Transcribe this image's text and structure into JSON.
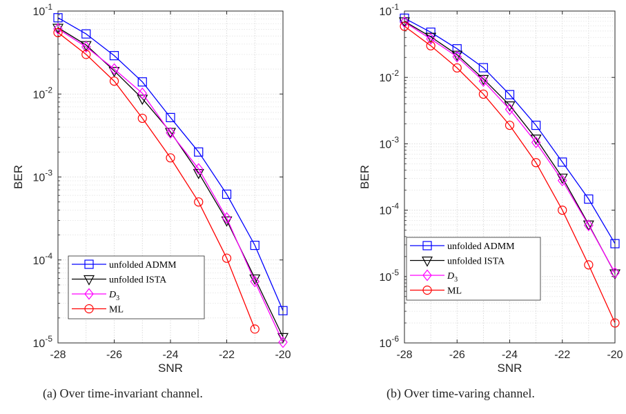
{
  "chart_data": [
    {
      "type": "line",
      "x_scale": "linear",
      "y_scale": "log",
      "xlabel": "SNR",
      "ylabel": "BER",
      "xlim": [
        -28,
        -20
      ],
      "ylim": [
        1e-05,
        0.1
      ],
      "xticks": [
        -28,
        -26,
        -24,
        -22,
        -20
      ],
      "xtick_labels": [
        "-28",
        "-26",
        "-24",
        "-22",
        "-20"
      ],
      "ytick_exponents": [
        -5,
        -4,
        -3,
        -2,
        -1
      ],
      "grid": true,
      "legend_position": "bottom-left",
      "caption": "(a) Over time-invariant channel.",
      "series": [
        {
          "name": "unfolded ADMM",
          "color": "#0000ff",
          "marker": "square",
          "x": [
            -28,
            -27,
            -26,
            -25,
            -24,
            -23,
            -22,
            -21,
            -20
          ],
          "y": [
            0.083,
            0.053,
            0.029,
            0.014,
            0.0052,
            0.002,
            0.00062,
            0.00015,
            2.45e-05
          ]
        },
        {
          "name": "unfolded ISTA",
          "color": "#000000",
          "marker": "triangle-down",
          "x": [
            -28,
            -27,
            -26,
            -25,
            -24,
            -23,
            -22,
            -21,
            -20
          ],
          "y": [
            0.063,
            0.039,
            0.019,
            0.0088,
            0.0035,
            0.00112,
            0.0003,
            6e-05,
            1.18e-05
          ]
        },
        {
          "name": "D3",
          "color": "#ff00ff",
          "marker": "diamond",
          "x": [
            -28,
            -27,
            -26,
            -25,
            -24,
            -23,
            -22,
            -21,
            -20
          ],
          "y": [
            0.061,
            0.037,
            0.02,
            0.0102,
            0.0034,
            0.00125,
            0.00032,
            5.5e-05,
            1.02e-05
          ]
        },
        {
          "name": "ML",
          "color": "#ff0000",
          "marker": "circle",
          "x": [
            -28,
            -27,
            -26,
            -25,
            -24,
            -23,
            -22,
            -21
          ],
          "y": [
            0.055,
            0.03,
            0.0143,
            0.0051,
            0.0017,
            0.0005,
            0.000105,
            1.47e-05
          ]
        }
      ]
    },
    {
      "type": "line",
      "x_scale": "linear",
      "y_scale": "log",
      "xlabel": "SNR",
      "ylabel": "BER",
      "xlim": [
        -28,
        -20
      ],
      "ylim": [
        1e-06,
        0.1
      ],
      "xticks": [
        -28,
        -26,
        -24,
        -22,
        -20
      ],
      "xtick_labels": [
        "-28",
        "-26",
        "-24",
        "-22",
        "-20"
      ],
      "ytick_exponents": [
        -6,
        -5,
        -4,
        -3,
        -2,
        -1
      ],
      "grid": true,
      "legend_position": "bottom-left",
      "caption": "(b) Over time-varing channel.",
      "series": [
        {
          "name": "unfolded ADMM",
          "color": "#0000ff",
          "marker": "square",
          "x": [
            -28,
            -27,
            -26,
            -25,
            -24,
            -23,
            -22,
            -21,
            -20
          ],
          "y": [
            0.078,
            0.048,
            0.027,
            0.014,
            0.0055,
            0.0019,
            0.00053,
            0.000147,
            3.13e-05
          ]
        },
        {
          "name": "unfolded ISTA",
          "color": "#000000",
          "marker": "triangle-down",
          "x": [
            -28,
            -27,
            -26,
            -25,
            -24,
            -23,
            -22,
            -21,
            -20
          ],
          "y": [
            0.07,
            0.041,
            0.022,
            0.0095,
            0.0038,
            0.0012,
            0.00031,
            6.1e-05,
            1.12e-05
          ]
        },
        {
          "name": "D3",
          "color": "#ff00ff",
          "marker": "diamond",
          "x": [
            -28,
            -27,
            -26,
            -25,
            -24,
            -23,
            -22,
            -21,
            -20
          ],
          "y": [
            0.068,
            0.038,
            0.0205,
            0.0088,
            0.0033,
            0.00105,
            0.00028,
            5.9e-05,
            1.14e-05
          ]
        },
        {
          "name": "ML",
          "color": "#ff0000",
          "marker": "circle",
          "x": [
            -28,
            -27,
            -26,
            -25,
            -24,
            -23,
            -22,
            -21,
            -20
          ],
          "y": [
            0.059,
            0.03,
            0.0139,
            0.0056,
            0.0019,
            0.00052,
            0.0001,
            1.5e-05,
            2e-06
          ]
        }
      ]
    }
  ]
}
